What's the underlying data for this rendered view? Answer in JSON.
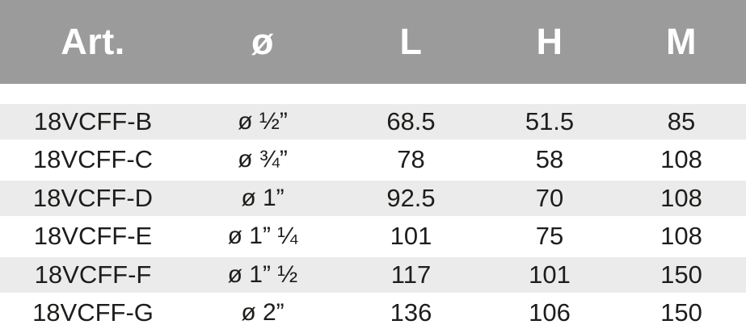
{
  "table": {
    "columns": {
      "art": "Art.",
      "diameter": "ø",
      "l": "L",
      "h": "H",
      "m": "M"
    },
    "rows": [
      {
        "art": "18VCFF-B",
        "diameter": "ø ½”",
        "l": "68.5",
        "h": "51.5",
        "m": "85"
      },
      {
        "art": "18VCFF-C",
        "diameter": "ø ¾”",
        "l": "78",
        "h": "58",
        "m": "108"
      },
      {
        "art": "18VCFF-D",
        "diameter": "ø 1”",
        "l": "92.5",
        "h": "70",
        "m": "108"
      },
      {
        "art": "18VCFF-E",
        "diameter": "ø 1” ¼",
        "l": "101",
        "h": "75",
        "m": "108"
      },
      {
        "art": "18VCFF-F",
        "diameter": "ø 1” ½",
        "l": "117",
        "h": "101",
        "m": "150"
      },
      {
        "art": "18VCFF-G",
        "diameter": "ø 2”",
        "l": "136",
        "h": "106",
        "m": "150"
      }
    ]
  },
  "colors": {
    "header_background": "#9b9b9b",
    "header_text": "#ffffff",
    "row_stripe": "#ebebeb",
    "row_text": "#1d1d1b"
  }
}
